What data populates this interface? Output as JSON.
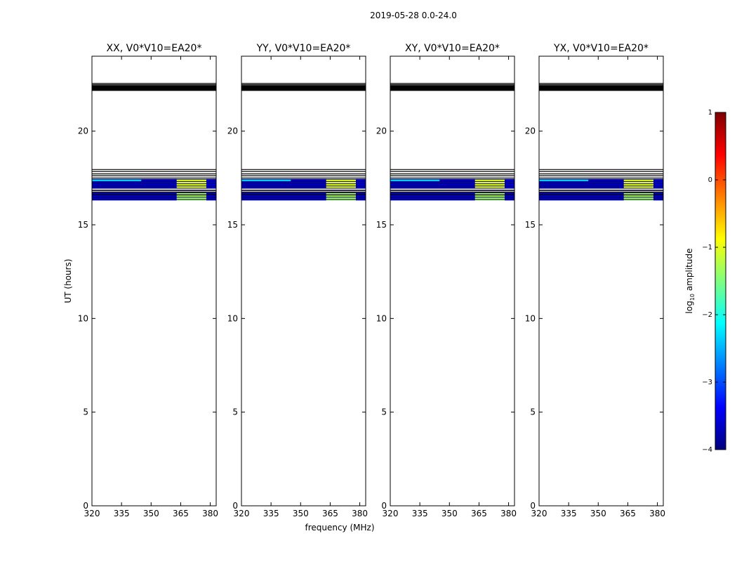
{
  "suptitle": "2019-05-28 0.0-24.0",
  "xlabel": "frequency (MHz)",
  "ylabel": "UT (hours)",
  "colorbar": {
    "label_prefix": "log",
    "label_sub": "10",
    "label_suffix": " amplitude",
    "range": [
      -4,
      1
    ],
    "ticks": [
      {
        "value": 1,
        "label": "1"
      },
      {
        "value": 0,
        "label": "0"
      },
      {
        "value": -1,
        "label": "−1"
      },
      {
        "value": -2,
        "label": "−2"
      },
      {
        "value": -3,
        "label": "−3"
      },
      {
        "value": -4,
        "label": "−4"
      }
    ],
    "colors": [
      "#00007f",
      "#0000ff",
      "#007fff",
      "#00ffff",
      "#7fff7f",
      "#ffff00",
      "#ff7f00",
      "#ff0000",
      "#7f0000"
    ]
  },
  "chart_data": {
    "type": "heatmap",
    "panels": [
      {
        "title": "XX, V0*V10=EA20*",
        "id": "xx"
      },
      {
        "title": "YY, V0*V10=EA20*",
        "id": "yy"
      },
      {
        "title": "XY, V0*V10=EA20*",
        "id": "xy"
      },
      {
        "title": "YX, V0*V10=EA20*",
        "id": "yx"
      }
    ],
    "xlim": [
      320,
      383
    ],
    "ylim": [
      0,
      24
    ],
    "xticks": [
      320,
      335,
      350,
      365,
      380
    ],
    "yticks": [
      0,
      5,
      10,
      15,
      20
    ],
    "ytick_labels_first_panel_only": false,
    "horizontal_lines_ut": [
      22.55,
      22.48,
      17.95,
      17.85,
      17.72,
      17.62,
      17.5,
      16.85,
      16.75,
      16.6
    ],
    "black_band_ut": [
      22.15,
      22.45
    ],
    "data_bands": [
      {
        "ut": [
          16.95,
          17.45
        ],
        "freq": [
          320,
          363
        ],
        "log_amp": -3.7
      },
      {
        "ut": [
          17.3,
          17.45
        ],
        "freq": [
          320,
          345
        ],
        "log_amp": -2.3
      },
      {
        "ut": [
          16.95,
          17.45
        ],
        "freq": [
          363,
          378
        ],
        "log_amp": -1.0
      },
      {
        "ut": [
          16.95,
          17.45
        ],
        "freq": [
          378,
          383
        ],
        "log_amp": -3.6
      },
      {
        "ut": [
          16.3,
          16.7
        ],
        "freq": [
          320,
          363
        ],
        "log_amp": -3.7
      },
      {
        "ut": [
          16.3,
          16.7
        ],
        "freq": [
          363,
          378
        ],
        "log_amp": -1.3
      },
      {
        "ut": [
          16.3,
          16.7
        ],
        "freq": [
          378,
          383
        ],
        "log_amp": -3.7
      }
    ]
  }
}
